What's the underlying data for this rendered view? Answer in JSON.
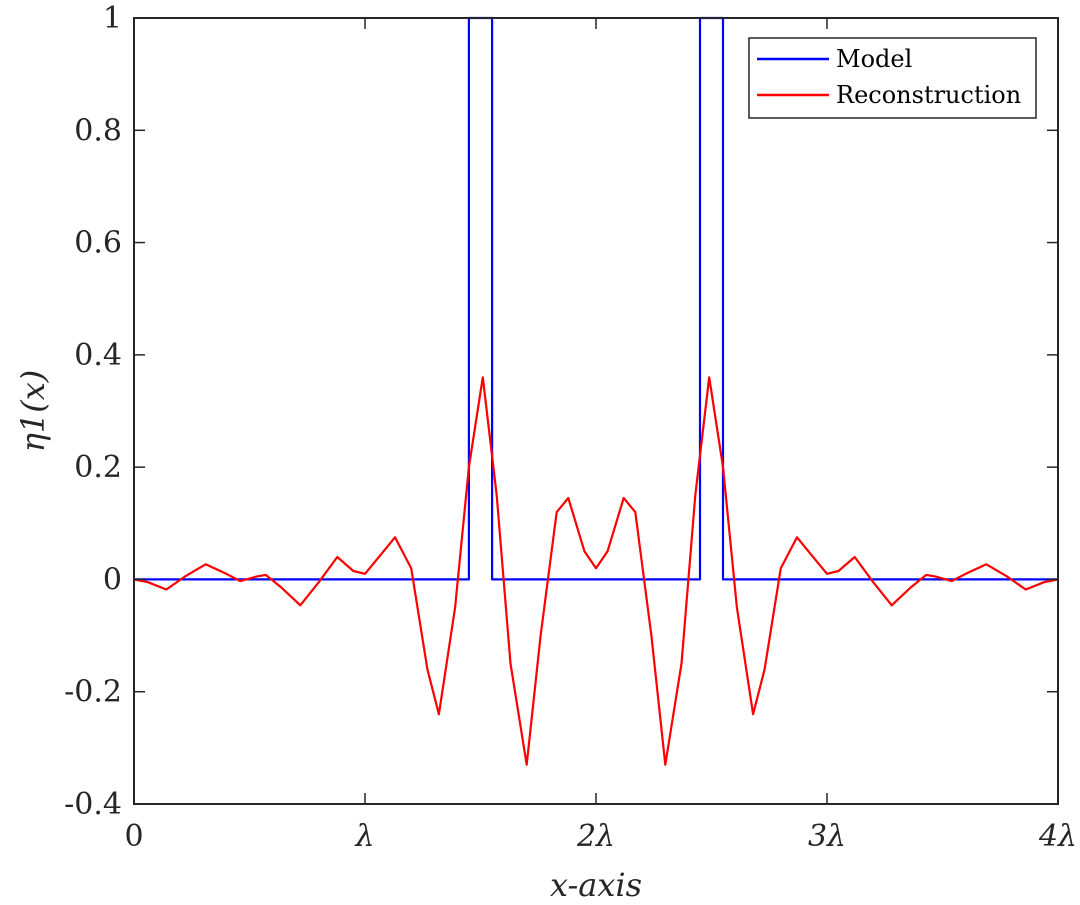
{
  "chart_data": {
    "type": "line",
    "title": "",
    "xlabel": "x-axis",
    "ylabel": "η1(x)",
    "xlim": [
      0,
      4
    ],
    "ylim": [
      -0.4,
      1
    ],
    "x_ticks": [
      0,
      1,
      2,
      3,
      4
    ],
    "x_tick_labels": [
      "0",
      "λ",
      "2λ",
      "3λ",
      "4λ"
    ],
    "y_ticks": [
      -0.4,
      -0.2,
      0,
      0.2,
      0.4,
      0.6,
      0.8,
      1
    ],
    "y_tick_labels": [
      "-0.4",
      "-0.2",
      "0",
      "0.2",
      "0.4",
      "0.6",
      "0.8",
      "1"
    ],
    "grid": false,
    "legend_position": "top-right",
    "series": [
      {
        "name": "Model",
        "color": "#0000ff",
        "x": [
          0,
          1.45,
          1.45,
          1.55,
          1.55,
          2.45,
          2.45,
          2.55,
          2.55,
          4
        ],
        "y": [
          0,
          0,
          1,
          1,
          0,
          0,
          1,
          1,
          0,
          0
        ]
      },
      {
        "name": "Reconstruction",
        "color": "#ff0000",
        "x": [
          0,
          0.06,
          0.14,
          0.22,
          0.31,
          0.39,
          0.46,
          0.53,
          0.57,
          0.64,
          0.72,
          0.8,
          0.88,
          0.95,
          1.0,
          1.07,
          1.13,
          1.2,
          1.27,
          1.32,
          1.39,
          1.45,
          1.51,
          1.57,
          1.63,
          1.7,
          1.76,
          1.83,
          1.88,
          1.95,
          2.0,
          2.05,
          2.12,
          2.17,
          2.24,
          2.3,
          2.37,
          2.43,
          2.49,
          2.55,
          2.61,
          2.68,
          2.73,
          2.8,
          2.87,
          2.93,
          3.0,
          3.05,
          3.12,
          3.2,
          3.28,
          3.36,
          3.43,
          3.47,
          3.54,
          3.61,
          3.69,
          3.78,
          3.86,
          3.94,
          4.0
        ],
        "y": [
          0,
          -0.005,
          -0.018,
          0.005,
          0.027,
          0.012,
          -0.003,
          0.005,
          0.008,
          -0.015,
          -0.046,
          -0.005,
          0.04,
          0.015,
          0.01,
          0.045,
          0.075,
          0.02,
          -0.16,
          -0.24,
          -0.05,
          0.2,
          0.36,
          0.15,
          -0.15,
          -0.33,
          -0.1,
          0.12,
          0.145,
          0.05,
          0.02,
          0.05,
          0.145,
          0.12,
          -0.1,
          -0.33,
          -0.15,
          0.15,
          0.36,
          0.2,
          -0.05,
          -0.24,
          -0.16,
          0.02,
          0.075,
          0.045,
          0.01,
          0.015,
          0.04,
          -0.005,
          -0.046,
          -0.015,
          0.008,
          0.005,
          -0.003,
          0.012,
          0.027,
          0.005,
          -0.018,
          -0.005,
          0
        ]
      }
    ]
  }
}
